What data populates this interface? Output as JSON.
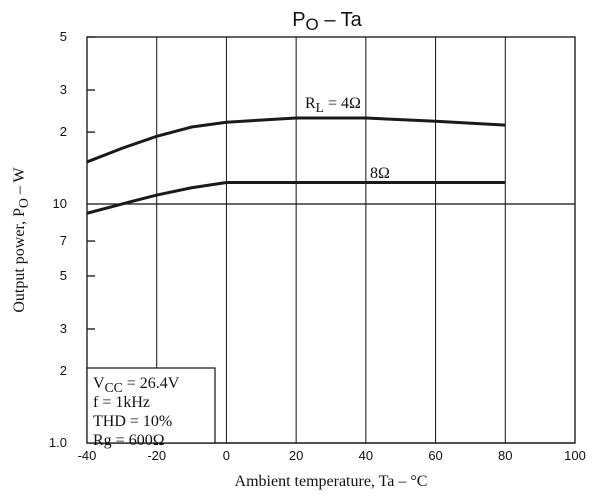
{
  "chart_data": {
    "type": "line",
    "title_parts": [
      "P",
      "O",
      " – Ta"
    ],
    "x_label": "Ambient temperature, Ta – °C",
    "y_label_parts": [
      "Output power, P",
      "O",
      " – W"
    ],
    "x": [
      -40,
      -30,
      -20,
      -10,
      0,
      20,
      40,
      60,
      80
    ],
    "series": [
      {
        "label_parts": [
          "R",
          "L",
          " = 4Ω"
        ],
        "color": "#1a1a1a",
        "values": [
          15,
          17.1,
          19.2,
          21,
          22,
          22.9,
          22.9,
          22.2,
          21.4
        ]
      },
      {
        "label_parts": [
          "8Ω"
        ],
        "color": "#1a1a1a",
        "values": [
          9.15,
          10,
          10.9,
          11.7,
          12.3,
          12.3,
          12.3,
          12.3,
          12.3
        ]
      }
    ],
    "conditions": [
      [
        "V",
        "CC",
        " = 26.4V"
      ],
      [
        "f = 1kHz"
      ],
      [
        "THD = 10%"
      ],
      [
        "Rg = 600Ω"
      ]
    ],
    "xlim": [
      -40,
      100
    ],
    "xticks": [
      -40,
      -20,
      0,
      20,
      40,
      60,
      80,
      100
    ],
    "ylim": [
      1,
      50
    ],
    "log_y": true,
    "yticks": [
      {
        "value": 1,
        "label": "1.0"
      },
      2,
      3,
      5,
      7,
      10,
      {
        "value": 20,
        "label": "2"
      },
      {
        "value": 30,
        "label": "3"
      },
      {
        "value": 50,
        "label": "5"
      }
    ],
    "grid": true
  }
}
